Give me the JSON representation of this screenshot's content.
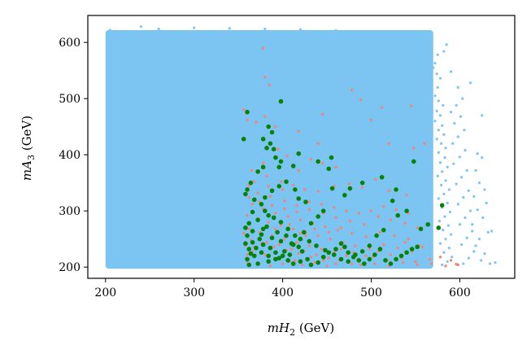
{
  "chart_data": {
    "type": "scatter",
    "xlabel": "mH₂ (GeV)",
    "ylabel": "mA₃ (GeV)",
    "xlim": [
      180,
      662
    ],
    "ylim": [
      180,
      648
    ],
    "xticks": [
      200,
      300,
      400,
      500,
      600
    ],
    "yticks": [
      200,
      300,
      400,
      500,
      600
    ],
    "grid": false,
    "colors": {
      "blue": "#7cc5f2",
      "salmon": "#f2857a",
      "green": "#068206"
    },
    "blue_region": {
      "x_range": [
        200,
        570
      ],
      "y_range": [
        197,
        622
      ]
    },
    "blue_edge_points": [
      [
        575,
        578
      ],
      [
        572,
        563
      ],
      [
        570,
        555
      ],
      [
        574,
        544
      ],
      [
        578,
        536
      ],
      [
        575,
        520
      ],
      [
        572,
        505
      ],
      [
        576,
        496
      ],
      [
        581,
        488
      ],
      [
        574,
        478
      ],
      [
        578,
        470
      ],
      [
        572,
        460
      ],
      [
        580,
        452
      ],
      [
        576,
        444
      ],
      [
        582,
        436
      ],
      [
        574,
        428
      ],
      [
        579,
        420
      ],
      [
        584,
        412
      ],
      [
        576,
        404
      ],
      [
        583,
        395
      ],
      [
        578,
        386
      ],
      [
        586,
        378
      ],
      [
        580,
        370
      ],
      [
        575,
        362
      ],
      [
        584,
        354
      ],
      [
        579,
        346
      ],
      [
        588,
        338
      ],
      [
        582,
        330
      ],
      [
        576,
        322
      ],
      [
        586,
        314
      ],
      [
        580,
        306
      ],
      [
        589,
        298
      ],
      [
        583,
        290
      ],
      [
        577,
        282
      ],
      [
        587,
        274
      ],
      [
        581,
        266
      ],
      [
        590,
        258
      ],
      [
        584,
        250
      ],
      [
        578,
        242
      ],
      [
        588,
        234
      ],
      [
        582,
        226
      ],
      [
        591,
        218
      ],
      [
        586,
        210
      ],
      [
        580,
        204
      ],
      [
        598,
        520
      ],
      [
        603,
        500
      ],
      [
        596,
        488
      ],
      [
        590,
        476
      ],
      [
        601,
        468
      ],
      [
        594,
        456
      ],
      [
        605,
        444
      ],
      [
        598,
        432
      ],
      [
        592,
        420
      ],
      [
        606,
        408
      ],
      [
        600,
        396
      ],
      [
        593,
        384
      ],
      [
        608,
        372
      ],
      [
        602,
        360
      ],
      [
        596,
        348
      ],
      [
        610,
        336
      ],
      [
        604,
        324
      ],
      [
        598,
        312
      ],
      [
        612,
        300
      ],
      [
        606,
        288
      ],
      [
        600,
        276
      ],
      [
        614,
        264
      ],
      [
        608,
        252
      ],
      [
        602,
        240
      ],
      [
        616,
        228
      ],
      [
        610,
        216
      ],
      [
        604,
        206
      ],
      [
        620,
        402
      ],
      [
        625,
        395
      ],
      [
        618,
        372
      ],
      [
        622,
        350
      ],
      [
        628,
        338
      ],
      [
        616,
        326
      ],
      [
        630,
        314
      ],
      [
        620,
        302
      ],
      [
        626,
        288
      ],
      [
        614,
        276
      ],
      [
        632,
        262
      ],
      [
        622,
        250
      ],
      [
        618,
        238
      ],
      [
        628,
        224
      ],
      [
        624,
        212
      ],
      [
        634,
        206
      ],
      [
        640,
        208
      ],
      [
        636,
        264
      ],
      [
        582,
        584
      ],
      [
        590,
        548
      ],
      [
        612,
        528
      ],
      [
        625,
        470
      ],
      [
        585,
        596
      ],
      [
        560,
        615
      ],
      [
        545,
        618
      ],
      [
        520,
        612
      ],
      [
        505,
        616
      ],
      [
        240,
        628
      ],
      [
        260,
        624
      ],
      [
        300,
        626
      ],
      [
        340,
        625
      ],
      [
        380,
        624
      ],
      [
        420,
        623
      ],
      [
        460,
        621
      ],
      [
        500,
        619
      ],
      [
        210,
        614
      ],
      [
        205,
        622
      ],
      [
        230,
        620
      ],
      [
        215,
        596
      ]
    ],
    "salmon_points": [
      [
        378,
        590
      ],
      [
        380,
        538
      ],
      [
        385,
        524
      ],
      [
        478,
        515
      ],
      [
        488,
        498
      ],
      [
        500,
        462
      ],
      [
        512,
        484
      ],
      [
        445,
        472
      ],
      [
        545,
        487
      ],
      [
        440,
        420
      ],
      [
        418,
        442
      ],
      [
        520,
        420
      ],
      [
        380,
        468
      ],
      [
        370,
        458
      ],
      [
        392,
        450
      ],
      [
        356,
        480
      ],
      [
        360,
        462
      ],
      [
        395,
        410
      ],
      [
        405,
        398
      ],
      [
        418,
        372
      ],
      [
        432,
        392
      ],
      [
        445,
        385
      ],
      [
        460,
        378
      ],
      [
        548,
        412
      ],
      [
        560,
        420
      ],
      [
        378,
        385
      ],
      [
        365,
        372
      ],
      [
        382,
        362
      ],
      [
        398,
        352
      ],
      [
        412,
        346
      ],
      [
        425,
        338
      ],
      [
        440,
        335
      ],
      [
        458,
        344
      ],
      [
        475,
        348
      ],
      [
        490,
        342
      ],
      [
        505,
        356
      ],
      [
        520,
        336
      ],
      [
        540,
        328
      ],
      [
        362,
        345
      ],
      [
        372,
        332
      ],
      [
        386,
        326
      ],
      [
        402,
        318
      ],
      [
        416,
        310
      ],
      [
        430,
        302
      ],
      [
        446,
        296
      ],
      [
        460,
        288
      ],
      [
        476,
        282
      ],
      [
        492,
        276
      ],
      [
        508,
        290
      ],
      [
        522,
        284
      ],
      [
        538,
        278
      ],
      [
        552,
        270
      ],
      [
        366,
        312
      ],
      [
        378,
        304
      ],
      [
        392,
        296
      ],
      [
        406,
        290
      ],
      [
        420,
        284
      ],
      [
        434,
        278
      ],
      [
        448,
        272
      ],
      [
        462,
        266
      ],
      [
        478,
        260
      ],
      [
        494,
        254
      ],
      [
        510,
        262
      ],
      [
        526,
        256
      ],
      [
        542,
        250
      ],
      [
        360,
        292
      ],
      [
        372,
        286
      ],
      [
        384,
        280
      ],
      [
        398,
        274
      ],
      [
        412,
        268
      ],
      [
        426,
        262
      ],
      [
        440,
        256
      ],
      [
        454,
        250
      ],
      [
        468,
        244
      ],
      [
        482,
        238
      ],
      [
        498,
        232
      ],
      [
        514,
        240
      ],
      [
        530,
        234
      ],
      [
        546,
        228
      ],
      [
        558,
        236
      ],
      [
        362,
        268
      ],
      [
        374,
        262
      ],
      [
        388,
        256
      ],
      [
        402,
        250
      ],
      [
        416,
        244
      ],
      [
        430,
        238
      ],
      [
        444,
        232
      ],
      [
        458,
        226
      ],
      [
        472,
        220
      ],
      [
        486,
        214
      ],
      [
        502,
        218
      ],
      [
        518,
        212
      ],
      [
        534,
        216
      ],
      [
        550,
        210
      ],
      [
        566,
        214
      ],
      [
        578,
        218
      ],
      [
        590,
        212
      ],
      [
        596,
        205
      ],
      [
        364,
        248
      ],
      [
        376,
        242
      ],
      [
        390,
        236
      ],
      [
        404,
        230
      ],
      [
        418,
        224
      ],
      [
        432,
        218
      ],
      [
        446,
        212
      ],
      [
        460,
        206
      ],
      [
        474,
        210
      ],
      [
        488,
        204
      ],
      [
        504,
        206
      ],
      [
        520,
        202
      ],
      [
        536,
        208
      ],
      [
        552,
        204
      ],
      [
        568,
        206
      ],
      [
        584,
        202
      ],
      [
        598,
        204
      ],
      [
        366,
        228
      ],
      [
        380,
        222
      ],
      [
        394,
        216
      ],
      [
        408,
        210
      ],
      [
        422,
        204
      ],
      [
        436,
        208
      ],
      [
        450,
        202
      ],
      [
        464,
        212
      ],
      [
        478,
        206
      ],
      [
        360,
        210
      ],
      [
        372,
        206
      ],
      [
        386,
        202
      ],
      [
        400,
        206
      ],
      [
        414,
        212
      ],
      [
        368,
        236
      ],
      [
        382,
        244
      ],
      [
        396,
        240
      ],
      [
        410,
        232
      ],
      [
        424,
        228
      ],
      [
        438,
        222
      ],
      [
        452,
        216
      ],
      [
        466,
        232
      ],
      [
        480,
        226
      ],
      [
        494,
        220
      ],
      [
        508,
        228
      ],
      [
        522,
        222
      ],
      [
        538,
        244
      ],
      [
        554,
        238
      ],
      [
        362,
        324
      ],
      [
        374,
        316
      ],
      [
        388,
        310
      ],
      [
        402,
        304
      ],
      [
        416,
        298
      ],
      [
        430,
        316
      ],
      [
        444,
        312
      ],
      [
        458,
        306
      ],
      [
        472,
        300
      ],
      [
        486,
        296
      ],
      [
        500,
        300
      ],
      [
        514,
        308
      ],
      [
        528,
        302
      ],
      [
        542,
        296
      ],
      [
        368,
        352
      ],
      [
        384,
        344
      ],
      [
        400,
        338
      ],
      [
        356,
        260
      ],
      [
        358,
        238
      ],
      [
        360,
        222
      ],
      [
        426,
        256
      ],
      [
        392,
        268
      ],
      [
        408,
        276
      ],
      [
        420,
        260
      ],
      [
        436,
        268
      ],
      [
        452,
        262
      ],
      [
        466,
        270
      ]
    ],
    "green_points": [
      [
        360,
        476
      ],
      [
        398,
        495
      ],
      [
        388,
        440
      ],
      [
        384,
        450
      ],
      [
        378,
        428
      ],
      [
        356,
        428
      ],
      [
        382,
        412
      ],
      [
        392,
        395
      ],
      [
        398,
        388
      ],
      [
        396,
        378
      ],
      [
        412,
        380
      ],
      [
        418,
        402
      ],
      [
        440,
        388
      ],
      [
        455,
        395
      ],
      [
        452,
        375
      ],
      [
        390,
        410
      ],
      [
        386,
        420
      ],
      [
        378,
        378
      ],
      [
        372,
        370
      ],
      [
        364,
        350
      ],
      [
        360,
        338
      ],
      [
        358,
        330
      ],
      [
        368,
        320
      ],
      [
        376,
        312
      ],
      [
        380,
        300
      ],
      [
        384,
        292
      ],
      [
        372,
        284
      ],
      [
        362,
        278
      ],
      [
        358,
        270
      ],
      [
        366,
        264
      ],
      [
        376,
        258
      ],
      [
        388,
        252
      ],
      [
        398,
        246
      ],
      [
        410,
        242
      ],
      [
        418,
        236
      ],
      [
        422,
        228
      ],
      [
        408,
        222
      ],
      [
        396,
        216
      ],
      [
        384,
        210
      ],
      [
        372,
        206
      ],
      [
        362,
        204
      ],
      [
        360,
        214
      ],
      [
        364,
        224
      ],
      [
        370,
        234
      ],
      [
        378,
        240
      ],
      [
        386,
        234
      ],
      [
        392,
        226
      ],
      [
        400,
        220
      ],
      [
        406,
        212
      ],
      [
        412,
        206
      ],
      [
        420,
        210
      ],
      [
        428,
        214
      ],
      [
        432,
        204
      ],
      [
        440,
        208
      ],
      [
        446,
        218
      ],
      [
        452,
        226
      ],
      [
        460,
        232
      ],
      [
        466,
        242
      ],
      [
        470,
        236
      ],
      [
        474,
        226
      ],
      [
        480,
        218
      ],
      [
        486,
        212
      ],
      [
        492,
        206
      ],
      [
        498,
        214
      ],
      [
        504,
        222
      ],
      [
        510,
        232
      ],
      [
        516,
        212
      ],
      [
        522,
        206
      ],
      [
        528,
        214
      ],
      [
        534,
        220
      ],
      [
        540,
        226
      ],
      [
        546,
        232
      ],
      [
        552,
        236
      ],
      [
        556,
        268
      ],
      [
        564,
        276
      ],
      [
        576,
        270
      ],
      [
        580,
        310
      ],
      [
        548,
        388
      ],
      [
        524,
        318
      ],
      [
        528,
        338
      ],
      [
        512,
        360
      ],
      [
        490,
        350
      ],
      [
        476,
        340
      ],
      [
        470,
        328
      ],
      [
        456,
        340
      ],
      [
        446,
        300
      ],
      [
        440,
        290
      ],
      [
        432,
        278
      ],
      [
        424,
        262
      ],
      [
        414,
        256
      ],
      [
        406,
        268
      ],
      [
        398,
        280
      ],
      [
        390,
        288
      ],
      [
        382,
        272
      ],
      [
        374,
        250
      ],
      [
        366,
        244
      ],
      [
        360,
        256
      ],
      [
        358,
        242
      ],
      [
        362,
        232
      ],
      [
        368,
        220
      ],
      [
        376,
        226
      ],
      [
        384,
        220
      ],
      [
        392,
        214
      ],
      [
        402,
        228
      ],
      [
        412,
        240
      ],
      [
        420,
        250
      ],
      [
        430,
        246
      ],
      [
        438,
        238
      ],
      [
        448,
        230
      ],
      [
        458,
        222
      ],
      [
        466,
        214
      ],
      [
        474,
        210
      ],
      [
        482,
        222
      ],
      [
        490,
        228
      ],
      [
        498,
        238
      ],
      [
        506,
        256
      ],
      [
        514,
        266
      ],
      [
        530,
        292
      ],
      [
        540,
        300
      ],
      [
        366,
        298
      ],
      [
        378,
        268
      ],
      [
        394,
        262
      ],
      [
        404,
        256
      ],
      [
        380,
        324
      ],
      [
        388,
        336
      ],
      [
        396,
        344
      ],
      [
        404,
        352
      ],
      [
        414,
        338
      ],
      [
        418,
        322
      ],
      [
        426,
        316
      ]
    ]
  }
}
